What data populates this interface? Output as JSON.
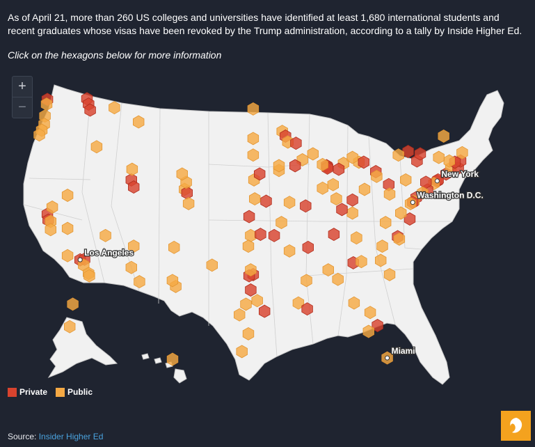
{
  "intro": "As of April 21, more than 260 US colleges and universities have identified at least 1,680 international students and recent graduates whose visas have been revoked by the Trump administration, according to a tally by Inside Higher Ed.",
  "hint": "Click on the hexagons below for more information",
  "zoom": {
    "in_label": "+",
    "out_label": "−"
  },
  "legend": {
    "private_label": "Private",
    "public_label": "Public"
  },
  "colors": {
    "private": "#d8432e",
    "public": "#f5a944",
    "land": "#f1f1f1",
    "background": "#1f2430"
  },
  "cities": [
    {
      "name": "New York",
      "lat": 40.71,
      "lon": -74.0
    },
    {
      "name": "Washington D.C.",
      "lat": 38.9,
      "lon": -77.03
    },
    {
      "name": "Los Angeles",
      "lat": 34.05,
      "lon": -118.24
    },
    {
      "name": "Miami",
      "lat": 25.76,
      "lon": -80.19
    }
  ],
  "chart_data": {
    "type": "map",
    "encoding": "hexagon per institution, color by type (Private / Public)",
    "points": [
      {
        "lat": 47.66,
        "lon": -117.4,
        "type": "Private"
      },
      {
        "lat": 47.2,
        "lon": -117.2,
        "type": "Private"
      },
      {
        "lat": 46.7,
        "lon": -117.0,
        "type": "Private"
      },
      {
        "lat": 47.6,
        "lon": -122.3,
        "type": "Private"
      },
      {
        "lat": 47.2,
        "lon": -122.4,
        "type": "Public"
      },
      {
        "lat": 46.2,
        "lon": -122.6,
        "type": "Public"
      },
      {
        "lat": 45.5,
        "lon": -122.7,
        "type": "Public"
      },
      {
        "lat": 45.0,
        "lon": -123.0,
        "type": "Public"
      },
      {
        "lat": 44.6,
        "lon": -123.3,
        "type": "Public"
      },
      {
        "lat": 46.9,
        "lon": -114.0,
        "type": "Public"
      },
      {
        "lat": 45.7,
        "lon": -111.0,
        "type": "Public"
      },
      {
        "lat": 46.8,
        "lon": -96.8,
        "type": "Public"
      },
      {
        "lat": 44.3,
        "lon": -96.8,
        "type": "Public"
      },
      {
        "lat": 44.9,
        "lon": -93.2,
        "type": "Public"
      },
      {
        "lat": 44.5,
        "lon": -92.8,
        "type": "Private"
      },
      {
        "lat": 44.0,
        "lon": -92.5,
        "type": "Public"
      },
      {
        "lat": 43.9,
        "lon": -91.5,
        "type": "Private"
      },
      {
        "lat": 43.0,
        "lon": -89.4,
        "type": "Public"
      },
      {
        "lat": 42.5,
        "lon": -90.7,
        "type": "Public"
      },
      {
        "lat": 42.0,
        "lon": -91.6,
        "type": "Private"
      },
      {
        "lat": 41.6,
        "lon": -93.6,
        "type": "Public"
      },
      {
        "lat": 42.0,
        "lon": -93.6,
        "type": "Public"
      },
      {
        "lat": 42.9,
        "lon": -96.8,
        "type": "Public"
      },
      {
        "lat": 42.0,
        "lon": -87.7,
        "type": "Private"
      },
      {
        "lat": 41.9,
        "lon": -87.6,
        "type": "Private"
      },
      {
        "lat": 41.8,
        "lon": -87.6,
        "type": "Private"
      },
      {
        "lat": 42.1,
        "lon": -88.2,
        "type": "Public"
      },
      {
        "lat": 42.2,
        "lon": -85.6,
        "type": "Public"
      },
      {
        "lat": 42.3,
        "lon": -83.7,
        "type": "Public"
      },
      {
        "lat": 42.7,
        "lon": -84.5,
        "type": "Public"
      },
      {
        "lat": 42.3,
        "lon": -83.1,
        "type": "Private"
      },
      {
        "lat": 41.5,
        "lon": -81.6,
        "type": "Private"
      },
      {
        "lat": 41.1,
        "lon": -81.5,
        "type": "Public"
      },
      {
        "lat": 40.0,
        "lon": -83.0,
        "type": "Public"
      },
      {
        "lat": 39.1,
        "lon": -84.5,
        "type": "Private"
      },
      {
        "lat": 40.4,
        "lon": -86.9,
        "type": "Public"
      },
      {
        "lat": 39.2,
        "lon": -86.5,
        "type": "Public"
      },
      {
        "lat": 41.7,
        "lon": -86.2,
        "type": "Private"
      },
      {
        "lat": 40.1,
        "lon": -88.2,
        "type": "Public"
      },
      {
        "lat": 38.6,
        "lon": -90.3,
        "type": "Private"
      },
      {
        "lat": 38.9,
        "lon": -92.3,
        "type": "Public"
      },
      {
        "lat": 37.2,
        "lon": -93.3,
        "type": "Public"
      },
      {
        "lat": 39.0,
        "lon": -95.2,
        "type": "Private"
      },
      {
        "lat": 39.2,
        "lon": -96.6,
        "type": "Public"
      },
      {
        "lat": 40.8,
        "lon": -96.7,
        "type": "Public"
      },
      {
        "lat": 41.3,
        "lon": -96.0,
        "type": "Private"
      },
      {
        "lat": 37.7,
        "lon": -97.3,
        "type": "Private"
      },
      {
        "lat": 36.1,
        "lon": -97.1,
        "type": "Public"
      },
      {
        "lat": 36.2,
        "lon": -95.9,
        "type": "Private"
      },
      {
        "lat": 35.2,
        "lon": -97.4,
        "type": "Public"
      },
      {
        "lat": 36.1,
        "lon": -94.2,
        "type": "Private"
      },
      {
        "lat": 34.8,
        "lon": -92.3,
        "type": "Public"
      },
      {
        "lat": 35.1,
        "lon": -90.0,
        "type": "Private"
      },
      {
        "lat": 36.2,
        "lon": -86.8,
        "type": "Private"
      },
      {
        "lat": 35.9,
        "lon": -84.0,
        "type": "Public"
      },
      {
        "lat": 38.0,
        "lon": -84.5,
        "type": "Public"
      },
      {
        "lat": 38.3,
        "lon": -85.8,
        "type": "Private"
      },
      {
        "lat": 37.5,
        "lon": -77.4,
        "type": "Private"
      },
      {
        "lat": 38.0,
        "lon": -78.5,
        "type": "Public"
      },
      {
        "lat": 37.2,
        "lon": -80.4,
        "type": "Public"
      },
      {
        "lat": 36.0,
        "lon": -78.9,
        "type": "Private"
      },
      {
        "lat": 35.8,
        "lon": -78.7,
        "type": "Public"
      },
      {
        "lat": 35.2,
        "lon": -80.8,
        "type": "Public"
      },
      {
        "lat": 34.0,
        "lon": -81.0,
        "type": "Public"
      },
      {
        "lat": 32.8,
        "lon": -79.9,
        "type": "Public"
      },
      {
        "lat": 33.8,
        "lon": -84.4,
        "type": "Private"
      },
      {
        "lat": 33.9,
        "lon": -83.4,
        "type": "Public"
      },
      {
        "lat": 32.4,
        "lon": -86.3,
        "type": "Public"
      },
      {
        "lat": 33.2,
        "lon": -87.5,
        "type": "Public"
      },
      {
        "lat": 32.3,
        "lon": -90.2,
        "type": "Public"
      },
      {
        "lat": 30.4,
        "lon": -91.2,
        "type": "Public"
      },
      {
        "lat": 29.9,
        "lon": -90.1,
        "type": "Private"
      },
      {
        "lat": 30.4,
        "lon": -84.3,
        "type": "Public"
      },
      {
        "lat": 29.6,
        "lon": -82.3,
        "type": "Public"
      },
      {
        "lat": 28.5,
        "lon": -81.4,
        "type": "Private"
      },
      {
        "lat": 28.0,
        "lon": -82.5,
        "type": "Public"
      },
      {
        "lat": 25.76,
        "lon": -80.19,
        "type": "Public"
      },
      {
        "lat": 32.8,
        "lon": -96.8,
        "type": "Private"
      },
      {
        "lat": 32.7,
        "lon": -97.3,
        "type": "Private"
      },
      {
        "lat": 33.2,
        "lon": -97.1,
        "type": "Public"
      },
      {
        "lat": 30.3,
        "lon": -97.7,
        "type": "Public"
      },
      {
        "lat": 29.7,
        "lon": -95.4,
        "type": "Private"
      },
      {
        "lat": 29.4,
        "lon": -98.5,
        "type": "Public"
      },
      {
        "lat": 30.6,
        "lon": -96.3,
        "type": "Public"
      },
      {
        "lat": 31.5,
        "lon": -97.1,
        "type": "Private"
      },
      {
        "lat": 33.6,
        "lon": -101.9,
        "type": "Public"
      },
      {
        "lat": 31.8,
        "lon": -106.4,
        "type": "Public"
      },
      {
        "lat": 27.8,
        "lon": -97.4,
        "type": "Public"
      },
      {
        "lat": 26.3,
        "lon": -98.2,
        "type": "Public"
      },
      {
        "lat": 35.1,
        "lon": -106.6,
        "type": "Public"
      },
      {
        "lat": 32.3,
        "lon": -106.8,
        "type": "Public"
      },
      {
        "lat": 33.4,
        "lon": -111.9,
        "type": "Public"
      },
      {
        "lat": 32.2,
        "lon": -110.9,
        "type": "Public"
      },
      {
        "lat": 35.2,
        "lon": -111.6,
        "type": "Public"
      },
      {
        "lat": 36.1,
        "lon": -115.1,
        "type": "Public"
      },
      {
        "lat": 39.5,
        "lon": -119.8,
        "type": "Public"
      },
      {
        "lat": 40.8,
        "lon": -111.9,
        "type": "Private"
      },
      {
        "lat": 40.2,
        "lon": -111.6,
        "type": "Private"
      },
      {
        "lat": 41.7,
        "lon": -111.8,
        "type": "Public"
      },
      {
        "lat": 43.6,
        "lon": -116.2,
        "type": "Public"
      },
      {
        "lat": 40.0,
        "lon": -105.3,
        "type": "Public"
      },
      {
        "lat": 39.7,
        "lon": -105.0,
        "type": "Private"
      },
      {
        "lat": 40.6,
        "lon": -105.1,
        "type": "Public"
      },
      {
        "lat": 41.3,
        "lon": -105.6,
        "type": "Public"
      },
      {
        "lat": 38.8,
        "lon": -104.8,
        "type": "Public"
      },
      {
        "lat": 37.9,
        "lon": -122.3,
        "type": "Private"
      },
      {
        "lat": 37.4,
        "lon": -122.2,
        "type": "Private"
      },
      {
        "lat": 38.5,
        "lon": -121.7,
        "type": "Public"
      },
      {
        "lat": 37.3,
        "lon": -121.9,
        "type": "Public"
      },
      {
        "lat": 36.6,
        "lon": -121.9,
        "type": "Public"
      },
      {
        "lat": 36.7,
        "lon": -119.8,
        "type": "Public"
      },
      {
        "lat": 34.4,
        "lon": -119.8,
        "type": "Public"
      },
      {
        "lat": 34.05,
        "lon": -118.24,
        "type": "Private"
      },
      {
        "lat": 34.1,
        "lon": -117.7,
        "type": "Private"
      },
      {
        "lat": 33.6,
        "lon": -117.8,
        "type": "Public"
      },
      {
        "lat": 32.9,
        "lon": -117.2,
        "type": "Public"
      },
      {
        "lat": 32.7,
        "lon": -117.1,
        "type": "Public"
      },
      {
        "lat": 40.7,
        "lon": -74.0,
        "type": "Private"
      },
      {
        "lat": 40.8,
        "lon": -73.9,
        "type": "Private"
      },
      {
        "lat": 40.5,
        "lon": -74.4,
        "type": "Public"
      },
      {
        "lat": 41.3,
        "lon": -72.9,
        "type": "Private"
      },
      {
        "lat": 41.8,
        "lon": -72.3,
        "type": "Public"
      },
      {
        "lat": 41.8,
        "lon": -71.4,
        "type": "Private"
      },
      {
        "lat": 42.4,
        "lon": -71.1,
        "type": "Private"
      },
      {
        "lat": 42.3,
        "lon": -71.8,
        "type": "Private"
      },
      {
        "lat": 42.4,
        "lon": -72.5,
        "type": "Public"
      },
      {
        "lat": 43.1,
        "lon": -70.9,
        "type": "Public"
      },
      {
        "lat": 44.5,
        "lon": -73.2,
        "type": "Public"
      },
      {
        "lat": 42.4,
        "lon": -76.5,
        "type": "Private"
      },
      {
        "lat": 43.0,
        "lon": -76.1,
        "type": "Private"
      },
      {
        "lat": 43.2,
        "lon": -77.6,
        "type": "Private"
      },
      {
        "lat": 42.9,
        "lon": -78.8,
        "type": "Public"
      },
      {
        "lat": 42.7,
        "lon": -73.8,
        "type": "Public"
      },
      {
        "lat": 40.4,
        "lon": -80.0,
        "type": "Private"
      },
      {
        "lat": 40.8,
        "lon": -77.9,
        "type": "Public"
      },
      {
        "lat": 39.95,
        "lon": -75.2,
        "type": "Private"
      },
      {
        "lat": 40.6,
        "lon": -75.4,
        "type": "Private"
      },
      {
        "lat": 39.7,
        "lon": -75.8,
        "type": "Public"
      },
      {
        "lat": 39.3,
        "lon": -76.6,
        "type": "Private"
      },
      {
        "lat": 38.99,
        "lon": -76.9,
        "type": "Public"
      },
      {
        "lat": 38.9,
        "lon": -77.03,
        "type": "Private"
      },
      {
        "lat": 38.8,
        "lon": -77.3,
        "type": "Public"
      },
      {
        "lat": 39.6,
        "lon": -79.9,
        "type": "Public"
      },
      {
        "lat": 61.2,
        "lon": -149.9,
        "type": "Public"
      },
      {
        "lat": 64.8,
        "lon": -147.7,
        "type": "Public"
      },
      {
        "lat": 21.3,
        "lon": -157.8,
        "type": "Public"
      }
    ]
  },
  "source": {
    "label": "Source:",
    "link_text": "Insider Higher Ed"
  }
}
